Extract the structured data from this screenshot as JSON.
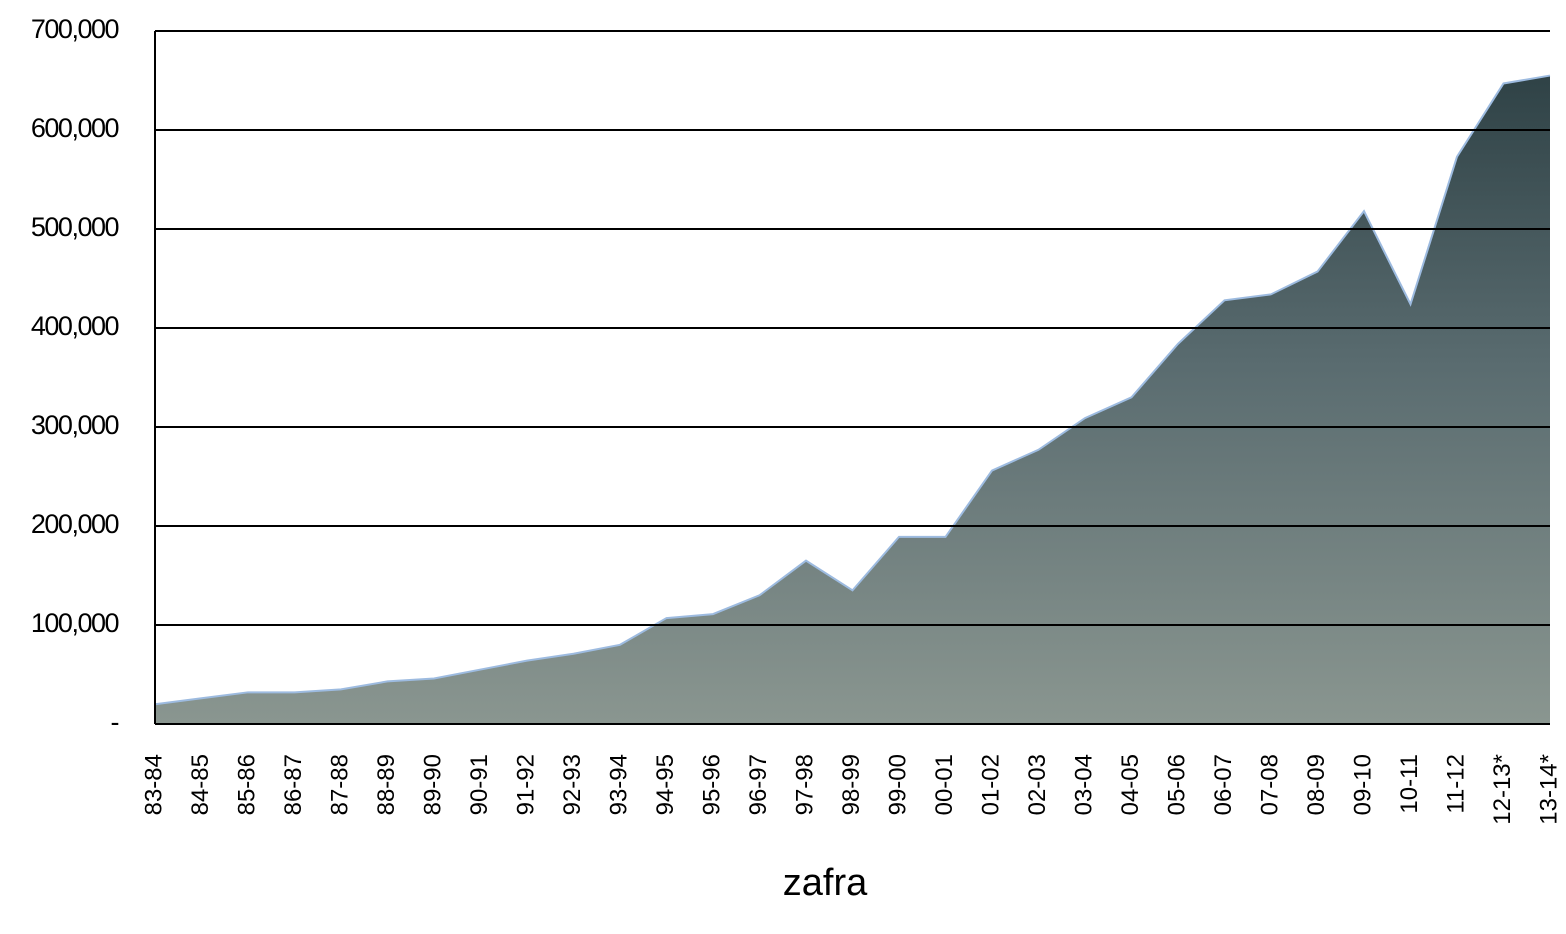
{
  "chart_data": {
    "type": "area",
    "x_label": "zafra",
    "categories": [
      "83-84",
      "84-85",
      "85-86",
      "86-87",
      "87-88",
      "88-89",
      "89-90",
      "90-91",
      "91-92",
      "92-93",
      "93-94",
      "94-95",
      "95-96",
      "96-97",
      "97-98",
      "98-99",
      "99-00",
      "00-01",
      "01-02",
      "02-03",
      "03-04",
      "04-05",
      "05-06",
      "06-07",
      "07-08",
      "08-09",
      "09-10",
      "10-11",
      "11-12",
      "12-13*",
      "13-14*"
    ],
    "values": [
      20000,
      26000,
      32000,
      32000,
      35000,
      43000,
      46000,
      55000,
      64000,
      71000,
      80000,
      107000,
      111000,
      130000,
      165000,
      135000,
      189000,
      189000,
      256000,
      277000,
      309000,
      330000,
      384000,
      428000,
      434000,
      457000,
      518000,
      424000,
      573000,
      647000,
      655000
    ],
    "color": "#55686c",
    "line_color": "#9dbbe0",
    "ylim": [
      0,
      700000
    ],
    "yticks": [
      {
        "value": 0,
        "label": "-"
      },
      {
        "value": 100000,
        "label": "100,000"
      },
      {
        "value": 200000,
        "label": "200,000"
      },
      {
        "value": 300000,
        "label": "300,000"
      },
      {
        "value": 400000,
        "label": "400,000"
      },
      {
        "value": 500000,
        "label": "500,000"
      },
      {
        "value": 600000,
        "label": "600,000"
      },
      {
        "value": 700000,
        "label": "700,000"
      }
    ],
    "grid": true
  }
}
